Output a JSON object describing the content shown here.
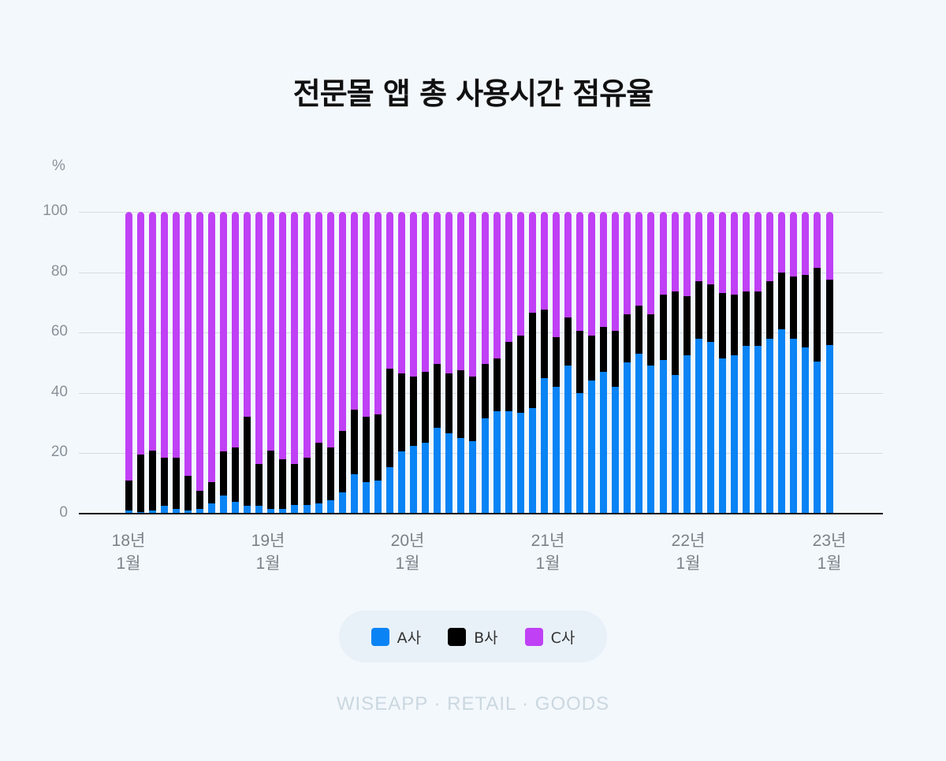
{
  "title": "전문몰 앱 총 사용시간 점유율",
  "y_unit": "%",
  "y_ticks": [
    "100",
    "80",
    "60",
    "40",
    "20",
    "0"
  ],
  "x_ticks": [
    {
      "year": "18년",
      "month": "1월"
    },
    {
      "year": "19년",
      "month": "1월"
    },
    {
      "year": "20년",
      "month": "1월"
    },
    {
      "year": "21년",
      "month": "1월"
    },
    {
      "year": "22년",
      "month": "1월"
    },
    {
      "year": "23년",
      "month": "1월"
    }
  ],
  "legend": [
    {
      "label": "A사",
      "color": "#0a84f5"
    },
    {
      "label": "B사",
      "color": "#000000"
    },
    {
      "label": "C사",
      "color": "#c040f5"
    }
  ],
  "footer": "WISEAPP · RETAIL · GOODS",
  "chart_data": {
    "type": "bar",
    "stacked": true,
    "title": "전문몰 앱 총 사용시간 점유율",
    "xlabel": "",
    "ylabel": "%",
    "ylim": [
      0,
      100
    ],
    "x_tick_labels": [
      "18년 1월",
      "19년 1월",
      "20년 1월",
      "21년 1월",
      "22년 1월",
      "23년 1월"
    ],
    "series": [
      {
        "name": "A사",
        "color": "#0a84f5",
        "values": [
          1,
          0.5,
          1,
          2.5,
          1.5,
          1,
          1.5,
          3.5,
          6,
          4,
          2.5,
          2.5,
          1.5,
          1.5,
          3,
          3,
          3.5,
          4.5,
          7,
          13,
          10.5,
          11,
          15.5,
          20.5,
          22.5,
          23.5,
          28.5,
          26.5,
          25,
          24,
          31.5,
          34,
          34,
          33.5,
          35,
          45,
          42,
          49,
          40,
          44,
          47,
          42,
          50,
          53,
          49,
          51,
          46,
          52.5,
          58,
          57,
          51.5,
          52.5,
          55.5,
          55.5,
          58,
          61,
          58,
          55,
          50.5,
          56
        ]
      },
      {
        "name": "B사",
        "color": "#000000",
        "values": [
          10,
          19,
          20,
          16,
          17,
          11.5,
          6,
          7,
          14.5,
          18,
          29.5,
          14,
          19.5,
          16.5,
          13.5,
          15.5,
          20,
          17.5,
          20.5,
          21.5,
          21.5,
          22,
          32.5,
          26,
          23,
          23.5,
          21,
          20,
          22.5,
          21.5,
          18,
          17.5,
          23,
          25.5,
          31.5,
          22.5,
          16.5,
          16,
          20.5,
          15,
          15,
          18.5,
          16,
          16,
          17,
          21.5,
          27.5,
          19.5,
          19,
          19,
          21.5,
          20,
          18,
          18,
          19,
          19,
          20.5,
          24,
          31,
          21.5
        ]
      },
      {
        "name": "C사",
        "color": "#c040f5",
        "values": [
          89,
          80.5,
          79,
          81.5,
          81.5,
          87.5,
          92.5,
          89.5,
          79.5,
          78,
          68,
          83.5,
          79,
          82,
          83.5,
          81.5,
          76.5,
          78,
          72.5,
          65.5,
          68,
          67,
          52,
          53.5,
          54.5,
          53,
          50.5,
          53.5,
          52.5,
          54.5,
          50.5,
          48.5,
          43,
          41,
          33.5,
          32.5,
          41.5,
          35,
          39.5,
          41,
          38,
          39.5,
          34,
          31,
          34,
          27.5,
          26.5,
          28,
          23,
          24,
          27,
          27.5,
          26.5,
          26.5,
          23,
          20,
          21.5,
          21,
          18.5,
          22.5
        ]
      }
    ]
  }
}
